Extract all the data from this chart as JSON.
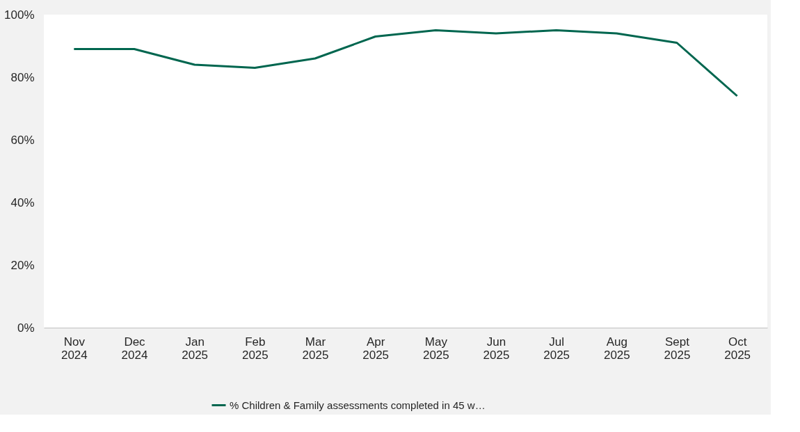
{
  "chart_data": {
    "type": "line",
    "categories": [
      "Nov 2024",
      "Dec 2024",
      "Jan 2025",
      "Feb 2025",
      "Mar 2025",
      "Apr 2025",
      "May 2025",
      "Jun 2025",
      "Jul 2025",
      "Aug 2025",
      "Sept 2025",
      "Oct 2025"
    ],
    "series": [
      {
        "name": "% Children & Family assessments completed in 45 w…",
        "color": "#00664f",
        "values": [
          89,
          89,
          84,
          83,
          86,
          93,
          95,
          94,
          95,
          94,
          91,
          74
        ]
      }
    ],
    "ylim": [
      0,
      100
    ],
    "yticks": [
      {
        "value": 0,
        "label": "0%"
      },
      {
        "value": 20,
        "label": "20%"
      },
      {
        "value": 40,
        "label": "40%"
      },
      {
        "value": 60,
        "label": "60%"
      },
      {
        "value": 80,
        "label": "80%"
      },
      {
        "value": 100,
        "label": "100%"
      }
    ],
    "grid": false,
    "legend": "bottom",
    "marker": "none",
    "line_style": "solid"
  }
}
